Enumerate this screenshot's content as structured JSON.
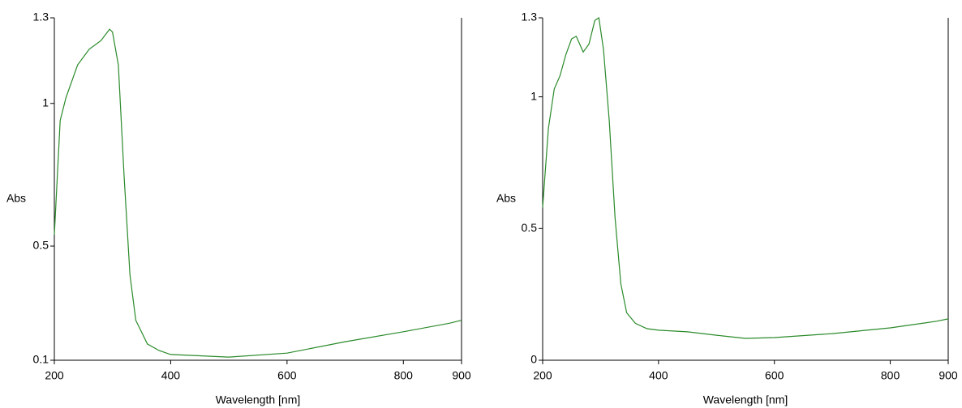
{
  "chart_data": [
    {
      "type": "line",
      "x_label": "Wavelength [nm]",
      "y_label": "Abs",
      "xlim": [
        200,
        900
      ],
      "xticks": [
        200,
        400,
        600,
        800,
        900
      ],
      "ylim": [
        0.1,
        1.3
      ],
      "yticks": [
        0.1,
        0.5,
        1,
        1.3
      ],
      "series": [
        {
          "color": "#2a8a2a",
          "x": [
            200,
            210,
            220,
            240,
            260,
            280,
            295,
            300,
            310,
            320,
            330,
            340,
            360,
            380,
            400,
            500,
            600,
            700,
            800,
            880,
            900
          ],
          "values": [
            0.54,
            0.94,
            1.02,
            1.135,
            1.19,
            1.22,
            1.26,
            1.25,
            1.135,
            0.74,
            0.4,
            0.24,
            0.157,
            0.134,
            0.12,
            0.111,
            0.125,
            0.165,
            0.2,
            0.23,
            0.24
          ]
        }
      ]
    },
    {
      "type": "line",
      "x_label": "Wavelength [nm]",
      "y_label": "Abs",
      "xlim": [
        200,
        900
      ],
      "xticks": [
        200,
        400,
        600,
        800,
        900
      ],
      "ylim": [
        0,
        1.3
      ],
      "yticks": [
        0,
        0.5,
        1,
        1.3
      ],
      "series": [
        {
          "color": "#2a8a2a",
          "x": [
            200,
            210,
            220,
            230,
            240,
            250,
            258,
            270,
            280,
            290,
            297,
            305,
            315,
            325,
            335,
            345,
            360,
            380,
            400,
            450,
            500,
            550,
            600,
            700,
            800,
            880,
            900
          ],
          "values": [
            0.58,
            0.88,
            1.03,
            1.08,
            1.16,
            1.22,
            1.23,
            1.17,
            1.2,
            1.29,
            1.3,
            1.18,
            0.91,
            0.54,
            0.29,
            0.18,
            0.14,
            0.12,
            0.114,
            0.108,
            0.095,
            0.083,
            0.086,
            0.101,
            0.123,
            0.148,
            0.157
          ]
        }
      ]
    }
  ]
}
